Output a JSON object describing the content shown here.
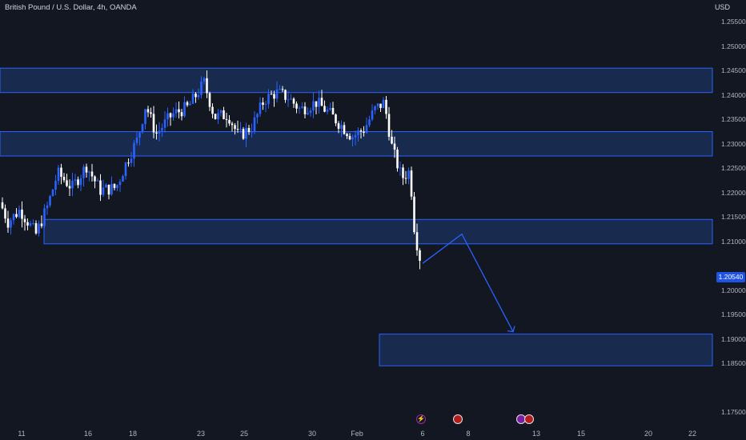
{
  "header": {
    "title": "British Pound / U.S. Dollar, 4h, OANDA",
    "currency": "USD"
  },
  "price_scale": {
    "labels": [
      "1.25500",
      "1.25000",
      "1.24500",
      "1.24000",
      "1.23500",
      "1.23000",
      "1.22500",
      "1.22000",
      "1.21500",
      "1.21000",
      "1.20000",
      "1.19500",
      "1.19000",
      "1.18500",
      "1.17500"
    ],
    "last_price": "1.20540"
  },
  "time_scale": {
    "labels": [
      "11",
      "16",
      "18",
      "23",
      "25",
      "30",
      "Feb",
      "6",
      "8",
      "13",
      "15",
      "20",
      "22"
    ]
  },
  "events": [
    {
      "icon": "lightning-icon"
    },
    {
      "icon": "us-flag-icon"
    },
    {
      "icon": "uk-flag-icon"
    },
    {
      "icon": "us-flag-icon"
    }
  ],
  "colors": {
    "background": "#131722",
    "bull": "#2962ff",
    "bear": "#ffffff",
    "zone_fill": "#1e3a72",
    "zone_border": "#2962ff",
    "projection": "#2962ff"
  },
  "chart_data": {
    "type": "candlestick",
    "y_unit": "USD",
    "zones": [
      {
        "low": 1.2405,
        "high": 1.2455
      },
      {
        "low": 1.2275,
        "high": 1.2325
      },
      {
        "low": 1.2095,
        "high": 1.2145
      },
      {
        "low": 1.1845,
        "high": 1.191
      }
    ],
    "projection": [
      {
        "date": "Feb 6",
        "price": 1.2055
      },
      {
        "date": "Feb 8",
        "price": 1.2115
      },
      {
        "date": "Feb 11",
        "price": 1.1915
      }
    ],
    "last_price": 1.2054
  }
}
